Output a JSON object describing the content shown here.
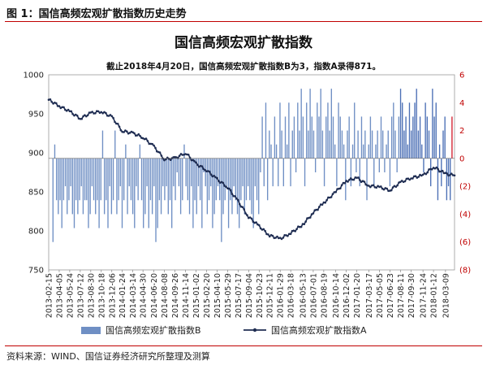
{
  "figure_label": "图 1：国信高频宏观扩散指数历史走势",
  "source_note": "资料来源：WIND、国信证券经济研究所整理及测算",
  "colors": {
    "line": "#1f2d52",
    "bar": "#6f8fc4",
    "bar_recent": "#4b6fb5",
    "bar_last": "#d21f2f",
    "right_axis": "#c00000",
    "rule": "#c00000"
  },
  "chart_data": {
    "type": "bar+line",
    "title": "国信高频宏观扩散指数",
    "subtitle": "截止2018年4月20日，国信高频宏观扩散指数B为3，指数A录得871。",
    "y_left": {
      "ylim": [
        750,
        1000
      ],
      "ticks": [
        "1000",
        "950",
        "900",
        "850",
        "800",
        "750"
      ]
    },
    "y_right": {
      "ylim": [
        -8,
        6
      ],
      "ticks": [
        "6",
        "4",
        "2",
        "0",
        "(2)",
        "(4)",
        "(6)",
        "(8)"
      ]
    },
    "x_range": [
      "2013-02-15",
      "2018-04-20"
    ],
    "x_ticks": [
      "2013-02-15",
      "2013-04-05",
      "2013-05-24",
      "2013-07-12",
      "2013-08-30",
      "2013-10-18",
      "2013-12-06",
      "2014-01-24",
      "2014-03-14",
      "2014-04-30",
      "2014-06-20",
      "2014-08-08",
      "2014-09-26",
      "2014-11-14",
      "2015-01-02",
      "2015-02-20",
      "2015-04-10",
      "2015-05-29",
      "2015-07-17",
      "2015-09-04",
      "2015-10-23",
      "2015-12-11",
      "2016-01-29",
      "2016-03-18",
      "2016-05-13",
      "2016-07-01",
      "2016-08-19",
      "2016-10-14",
      "2016-12-02",
      "2017-01-20",
      "2017-03-17",
      "2017-05-05",
      "2017-06-23",
      "2017-08-11",
      "2017-09-30",
      "2017-11-24",
      "2018-01-12",
      "2018-03-09"
    ],
    "series": [
      {
        "name": "国信高频宏观扩散指数A",
        "kind": "line",
        "axis": "left",
        "points": [
          [
            "2013-02-15",
            968
          ],
          [
            "2013-04-05",
            960
          ],
          [
            "2013-05-24",
            953
          ],
          [
            "2013-07-12",
            944
          ],
          [
            "2013-08-30",
            951
          ],
          [
            "2013-10-18",
            953
          ],
          [
            "2013-12-06",
            946
          ],
          [
            "2014-01-24",
            928
          ],
          [
            "2014-03-14",
            925
          ],
          [
            "2014-04-30",
            920
          ],
          [
            "2014-06-20",
            908
          ],
          [
            "2014-08-08",
            892
          ],
          [
            "2014-09-26",
            893
          ],
          [
            "2014-11-14",
            900
          ],
          [
            "2015-01-02",
            886
          ],
          [
            "2015-02-20",
            878
          ],
          [
            "2015-04-10",
            866
          ],
          [
            "2015-05-29",
            856
          ],
          [
            "2015-07-17",
            838
          ],
          [
            "2015-09-04",
            818
          ],
          [
            "2015-10-23",
            806
          ],
          [
            "2015-12-11",
            794
          ],
          [
            "2016-01-29",
            790
          ],
          [
            "2016-03-18",
            797
          ],
          [
            "2016-05-13",
            808
          ],
          [
            "2016-07-01",
            823
          ],
          [
            "2016-08-19",
            836
          ],
          [
            "2016-10-14",
            850
          ],
          [
            "2016-12-02",
            864
          ],
          [
            "2017-01-20",
            868
          ],
          [
            "2017-03-17",
            858
          ],
          [
            "2017-05-05",
            856
          ],
          [
            "2017-06-23",
            852
          ],
          [
            "2017-08-11",
            862
          ],
          [
            "2017-09-30",
            868
          ],
          [
            "2017-11-24",
            871
          ],
          [
            "2018-01-12",
            882
          ],
          [
            "2018-03-09",
            873
          ],
          [
            "2018-04-20",
            871
          ]
        ]
      },
      {
        "name": "国信高频宏观扩散指数B",
        "kind": "bar",
        "axis": "right",
        "values": [
          0,
          -6,
          1,
          -3,
          -4,
          -3,
          -5,
          -3,
          -2,
          -4,
          -3,
          -2,
          -4,
          -5,
          -3,
          -4,
          -3,
          -2,
          -4,
          -3,
          -3,
          -5,
          -4,
          -2,
          -3,
          -4,
          -3,
          -5,
          -3,
          2,
          -4,
          -3,
          -5,
          -2,
          -4,
          -3,
          2,
          -4,
          -3,
          -2,
          -5,
          -3,
          1,
          -4,
          -2,
          -3,
          -4,
          -5,
          -2,
          -3,
          1,
          -3,
          -5,
          -4,
          -2,
          -5,
          -3,
          -4,
          -2,
          -6,
          -5,
          -3,
          -4,
          -2,
          -3,
          -2,
          -4,
          -3,
          -5,
          -2,
          -3,
          -1,
          -2,
          -4,
          -3,
          1,
          -2,
          -3,
          -4,
          -2,
          -5,
          -3,
          -4,
          -2,
          -3,
          -5,
          -1,
          -2,
          -4,
          -3,
          -2,
          -5,
          -4,
          -3,
          -2,
          -3,
          -6,
          -4,
          -3,
          -2,
          -5,
          -3,
          -4,
          -2,
          -3,
          -4,
          -5,
          -3,
          -2,
          -4,
          -3,
          -2,
          -3,
          -4,
          -5,
          -2,
          -3,
          -4,
          -1,
          3,
          -2,
          4,
          -3,
          2,
          1,
          -2,
          3,
          1,
          -2,
          4,
          2,
          -2,
          3,
          1,
          4,
          -2,
          2,
          3,
          -1,
          4,
          2,
          5,
          3,
          -2,
          4,
          2,
          5,
          3,
          2,
          -1,
          4,
          3,
          5,
          2,
          -2,
          3,
          4,
          2,
          5,
          3,
          1,
          -2,
          4,
          3,
          2,
          1,
          -3,
          2,
          3,
          -2,
          1,
          4,
          -1,
          2,
          -2,
          3,
          1,
          2,
          -3,
          1,
          3,
          2,
          -2,
          1,
          2,
          -1,
          3,
          2,
          -1,
          1,
          2,
          -2,
          3,
          4,
          2,
          -1,
          3,
          5,
          4,
          2,
          3,
          1,
          4,
          2,
          3,
          4,
          5,
          2,
          3,
          1,
          -1,
          4,
          3,
          2,
          -2,
          5,
          3,
          4,
          -3,
          1,
          -2,
          2,
          3,
          -3,
          -2,
          -3,
          3
        ]
      }
    ],
    "legend": [
      "国信高频宏观扩散指数B",
      "国信高频宏观扩散指数A"
    ],
    "legend_position": "bottom"
  }
}
